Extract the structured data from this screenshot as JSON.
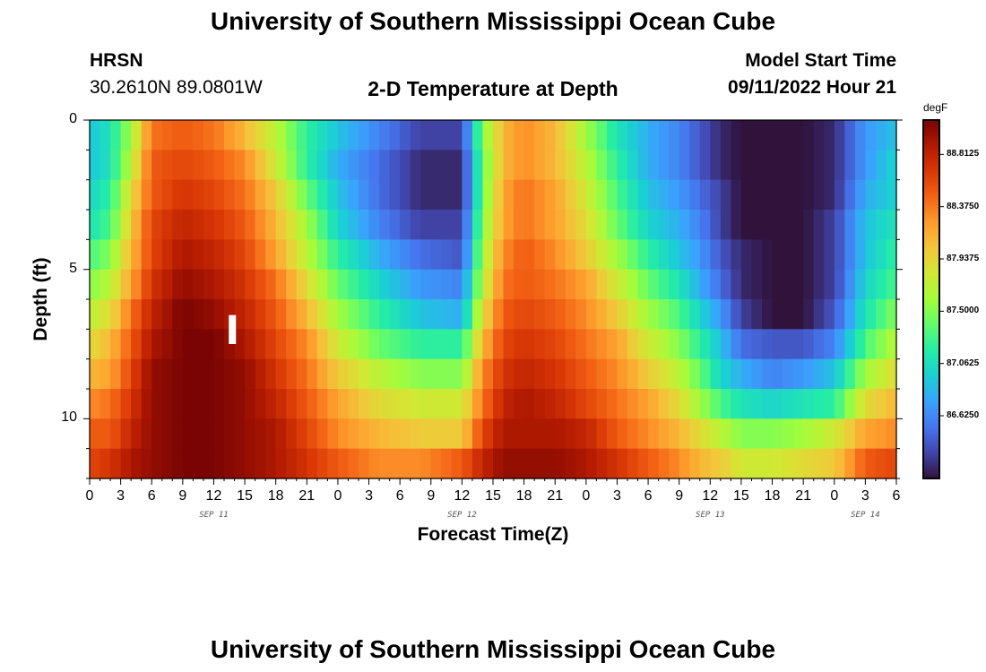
{
  "header": {
    "title": "University of Southern Mississippi Ocean Cube",
    "station_name": "HRSN",
    "station_coords": "30.2610N  89.0801W",
    "subtitle": "2-D Temperature at Depth",
    "model_start_label": "Model Start Time",
    "model_start_value": "09/11/2022 Hour 21",
    "footer_title": "University of Southern Mississippi Ocean Cube"
  },
  "colors": {
    "palette": [
      "#30123b",
      "#4145ab",
      "#4675ed",
      "#39a2fc",
      "#1bcfd4",
      "#24eca6",
      "#61fc6c",
      "#a4fc3b",
      "#d1e834",
      "#f3c63a",
      "#fe9b2d",
      "#f36315",
      "#d93806",
      "#b11901",
      "#7a0403"
    ],
    "marker": "#ffffff"
  },
  "chart_data": {
    "type": "heatmap",
    "title": "2-D Temperature at Depth",
    "xlabel": "Forecast Time(Z)",
    "ylabel": "Depth (ft)",
    "x_range_hours": [
      0,
      78
    ],
    "x_tick_labels": [
      "0",
      "3",
      "6",
      "9",
      "12",
      "15",
      "18",
      "21",
      "0",
      "3",
      "6",
      "9",
      "12",
      "15",
      "18",
      "21",
      "0",
      "3",
      "6",
      "9",
      "12",
      "15",
      "18",
      "21",
      "0",
      "3",
      "6"
    ],
    "date_labels": [
      {
        "label": "SEP 11",
        "hour": 12
      },
      {
        "label": "SEP 12",
        "hour": 36
      },
      {
        "label": "SEP 13",
        "hour": 60
      },
      {
        "label": "SEP 14",
        "hour": 75
      }
    ],
    "ylim": [
      12,
      0
    ],
    "y_tick_labels": [
      "0",
      "5",
      "10"
    ],
    "depth_levels_ft": [
      0.5,
      1.5,
      2.5,
      3.5,
      4.5,
      5.5,
      6.5,
      7.5,
      8.5,
      9.5,
      10.5,
      11.5
    ],
    "current_time_marker": {
      "hour": 13.8,
      "depth_from": 6.5,
      "depth_to": 7.5
    },
    "colorbar": {
      "unit": "degF",
      "min": 86.1,
      "max": 89.1,
      "tick_labels": [
        "88.8125",
        "88.3750",
        "87.9375",
        "87.5000",
        "87.0625",
        "86.6250"
      ],
      "tick_values": [
        88.8125,
        88.375,
        87.9375,
        87.5,
        87.0625,
        86.625
      ]
    },
    "keyframes_hours": [
      0,
      2,
      4,
      6,
      9,
      12,
      15,
      18,
      21,
      24,
      28,
      32,
      36,
      38,
      40,
      42,
      45,
      48,
      51,
      54,
      57,
      59,
      61,
      63,
      66,
      69,
      72,
      75,
      78
    ],
    "keyframes_values": [
      [
        86.9,
        87.1,
        87.6,
        88.4,
        88.5,
        88.4,
        88.1,
        87.7,
        87.2,
        86.9,
        86.6,
        86.3,
        86.3,
        87.5,
        88.1,
        88.3,
        88.1,
        87.6,
        87.1,
        86.8,
        86.6,
        86.4,
        86.2,
        86.1,
        86.1,
        86.1,
        86.2,
        86.7,
        86.9
      ],
      [
        86.9,
        87.1,
        87.7,
        88.5,
        88.6,
        88.5,
        88.3,
        87.8,
        87.2,
        86.8,
        86.5,
        86.2,
        86.2,
        87.4,
        88.1,
        88.3,
        88.1,
        87.7,
        87.2,
        86.8,
        86.6,
        86.4,
        86.2,
        86.1,
        86.1,
        86.1,
        86.2,
        86.7,
        87.0
      ],
      [
        87.0,
        87.2,
        87.9,
        88.5,
        88.7,
        88.6,
        88.4,
        88.0,
        87.4,
        86.9,
        86.5,
        86.2,
        86.2,
        87.4,
        88.2,
        88.4,
        88.2,
        87.8,
        87.3,
        86.9,
        86.7,
        86.5,
        86.3,
        86.1,
        86.1,
        86.1,
        86.2,
        86.8,
        87.0
      ],
      [
        87.1,
        87.3,
        88.0,
        88.6,
        88.8,
        88.7,
        88.5,
        88.1,
        87.6,
        87.0,
        86.6,
        86.3,
        86.3,
        87.5,
        88.2,
        88.4,
        88.2,
        87.9,
        87.4,
        87.0,
        86.8,
        86.6,
        86.3,
        86.1,
        86.1,
        86.1,
        86.3,
        86.9,
        87.1
      ],
      [
        87.3,
        87.5,
        88.1,
        88.6,
        88.9,
        88.8,
        88.6,
        88.2,
        87.7,
        87.2,
        86.8,
        86.5,
        86.4,
        87.6,
        88.3,
        88.5,
        88.3,
        88.0,
        87.6,
        87.2,
        86.9,
        86.7,
        86.4,
        86.2,
        86.1,
        86.1,
        86.3,
        86.9,
        87.2
      ],
      [
        87.5,
        87.7,
        88.2,
        88.7,
        89.0,
        88.9,
        88.7,
        88.4,
        87.9,
        87.4,
        87.0,
        86.7,
        86.6,
        87.7,
        88.4,
        88.5,
        88.4,
        88.2,
        87.8,
        87.4,
        87.1,
        86.8,
        86.5,
        86.2,
        86.1,
        86.1,
        86.3,
        87.0,
        87.3
      ],
      [
        87.7,
        87.9,
        88.4,
        88.8,
        89.1,
        89.0,
        88.8,
        88.5,
        88.1,
        87.6,
        87.2,
        86.9,
        86.8,
        87.9,
        88.5,
        88.6,
        88.5,
        88.3,
        88.0,
        87.6,
        87.3,
        87.0,
        86.7,
        86.3,
        86.1,
        86.1,
        86.4,
        87.1,
        87.5
      ],
      [
        87.9,
        88.1,
        88.5,
        88.9,
        89.1,
        89.1,
        88.9,
        88.6,
        88.3,
        87.8,
        87.4,
        87.2,
        87.2,
        88.1,
        88.6,
        88.7,
        88.6,
        88.4,
        88.2,
        87.8,
        87.5,
        87.2,
        86.9,
        86.5,
        86.4,
        86.4,
        86.6,
        87.3,
        87.7
      ],
      [
        88.1,
        88.2,
        88.6,
        89.0,
        89.1,
        89.1,
        89.0,
        88.7,
        88.4,
        88.0,
        87.7,
        87.5,
        87.5,
        88.3,
        88.7,
        88.8,
        88.7,
        88.5,
        88.3,
        88.0,
        87.7,
        87.4,
        87.0,
        86.8,
        86.6,
        86.7,
        86.9,
        87.6,
        87.9
      ],
      [
        88.3,
        88.4,
        88.7,
        89.0,
        89.1,
        89.1,
        89.0,
        88.8,
        88.5,
        88.2,
        87.9,
        87.8,
        87.8,
        88.4,
        88.8,
        88.9,
        88.8,
        88.6,
        88.4,
        88.2,
        87.9,
        87.6,
        87.3,
        87.1,
        87.0,
        87.1,
        87.2,
        87.9,
        88.1
      ],
      [
        88.5,
        88.5,
        88.8,
        89.0,
        89.1,
        89.1,
        89.0,
        88.9,
        88.6,
        88.3,
        88.1,
        88.0,
        88.0,
        88.6,
        88.9,
        88.9,
        88.9,
        88.8,
        88.5,
        88.3,
        88.1,
        87.9,
        87.7,
        87.5,
        87.5,
        87.6,
        87.8,
        88.2,
        88.3
      ],
      [
        88.6,
        88.7,
        88.9,
        89.0,
        89.1,
        89.1,
        89.0,
        88.9,
        88.7,
        88.5,
        88.3,
        88.3,
        88.5,
        88.8,
        89.0,
        89.0,
        89.0,
        88.9,
        88.7,
        88.5,
        88.3,
        88.1,
        88.0,
        87.8,
        87.8,
        87.9,
        88.0,
        88.5,
        88.6
      ]
    ]
  }
}
